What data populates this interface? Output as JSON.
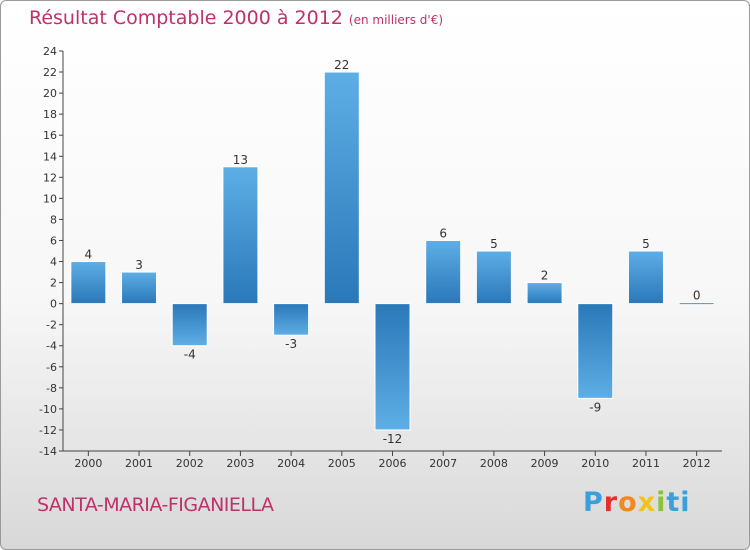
{
  "header": {
    "title": "Résultat Comptable 2000 à 2012",
    "subtitle": "(en milliers d'€)"
  },
  "footer": {
    "town": "SANTA-MARIA-FIGANIELLA",
    "logo": [
      "P",
      "r",
      "o",
      "x",
      "i",
      "ti"
    ]
  },
  "colors": {
    "title": "#c0306a",
    "bar_light": "#5eaee6",
    "bar_dark": "#2a78b8"
  },
  "chart_data": {
    "type": "bar",
    "title": "Résultat Comptable 2000 à 2012",
    "subtitle": "(en milliers d'€)",
    "xlabel": "",
    "ylabel": "",
    "categories": [
      "2000",
      "2001",
      "2002",
      "2003",
      "2004",
      "2005",
      "2006",
      "2007",
      "2008",
      "2009",
      "2010",
      "2011",
      "2012"
    ],
    "values": [
      4,
      3,
      -4,
      13,
      -3,
      22,
      -12,
      6,
      5,
      2,
      -9,
      5,
      0
    ],
    "value_labels": [
      "4",
      "3",
      "-4",
      "13",
      "-3",
      "22",
      "-12",
      "6",
      "5",
      "2",
      "-9",
      "5",
      "0"
    ],
    "ylim": [
      -14,
      24
    ],
    "yticks": [
      -14,
      -12,
      -10,
      -8,
      -6,
      -4,
      -2,
      0,
      2,
      4,
      6,
      8,
      10,
      12,
      14,
      16,
      18,
      20,
      22,
      24
    ],
    "ytick_labels": [
      "-14",
      "-12",
      "-10",
      "-8",
      "-6",
      "-4",
      "-2",
      "0",
      "2",
      "4",
      "6",
      "8",
      "10",
      "12",
      "14",
      "16",
      "18",
      "20",
      "22",
      "24"
    ],
    "grid": false,
    "legend": "none"
  }
}
